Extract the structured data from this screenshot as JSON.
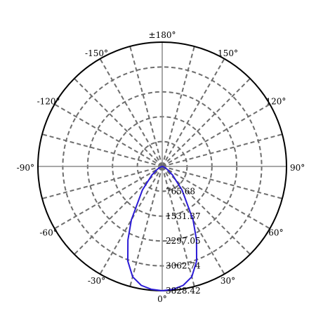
{
  "chart_data": {
    "type": "polar",
    "title": "",
    "angle_labels": [
      {
        "angle": 180,
        "label": "±180°"
      },
      {
        "angle": -150,
        "label": "-150°"
      },
      {
        "angle": 150,
        "label": "150°"
      },
      {
        "angle": -120,
        "label": "-120°"
      },
      {
        "angle": 120,
        "label": "120°"
      },
      {
        "angle": -90,
        "label": "-90°"
      },
      {
        "angle": 90,
        "label": "90°"
      },
      {
        "angle": -60,
        "label": "-60°"
      },
      {
        "angle": 60,
        "label": "60°"
      },
      {
        "angle": -30,
        "label": "-30°"
      },
      {
        "angle": 30,
        "label": "30°"
      },
      {
        "angle": 0,
        "label": "0°"
      }
    ],
    "radial_ticks": [
      {
        "value": 765.68,
        "label": "765.68"
      },
      {
        "value": 1531.37,
        "label": "1531.37"
      },
      {
        "value": 2297.05,
        "label": "2297.05"
      },
      {
        "value": 3062.74,
        "label": "3062.74"
      },
      {
        "value": 3828.42,
        "label": "3828.42"
      }
    ],
    "radial_max": 3828.42,
    "angle_grid_step": 15,
    "grid": true,
    "series": [
      {
        "color": "#2b1bd6",
        "points": [
          {
            "angle": -90,
            "value": 0
          },
          {
            "angle": -80,
            "value": 15
          },
          {
            "angle": -70,
            "value": 60
          },
          {
            "angle": -60,
            "value": 170
          },
          {
            "angle": -50,
            "value": 420
          },
          {
            "angle": -40,
            "value": 950
          },
          {
            "angle": -30,
            "value": 1900
          },
          {
            "angle": -25,
            "value": 2500
          },
          {
            "angle": -20,
            "value": 3100
          },
          {
            "angle": -15,
            "value": 3520
          },
          {
            "angle": -10,
            "value": 3720
          },
          {
            "angle": -5,
            "value": 3800
          },
          {
            "angle": 0,
            "value": 3828.42
          },
          {
            "angle": 5,
            "value": 3800
          },
          {
            "angle": 10,
            "value": 3720
          },
          {
            "angle": 15,
            "value": 3520
          },
          {
            "angle": 20,
            "value": 3100
          },
          {
            "angle": 25,
            "value": 2500
          },
          {
            "angle": 30,
            "value": 1900
          },
          {
            "angle": 40,
            "value": 950
          },
          {
            "angle": 50,
            "value": 420
          },
          {
            "angle": 60,
            "value": 170
          },
          {
            "angle": 70,
            "value": 60
          },
          {
            "angle": 80,
            "value": 15
          },
          {
            "angle": 90,
            "value": 0
          }
        ]
      }
    ]
  }
}
